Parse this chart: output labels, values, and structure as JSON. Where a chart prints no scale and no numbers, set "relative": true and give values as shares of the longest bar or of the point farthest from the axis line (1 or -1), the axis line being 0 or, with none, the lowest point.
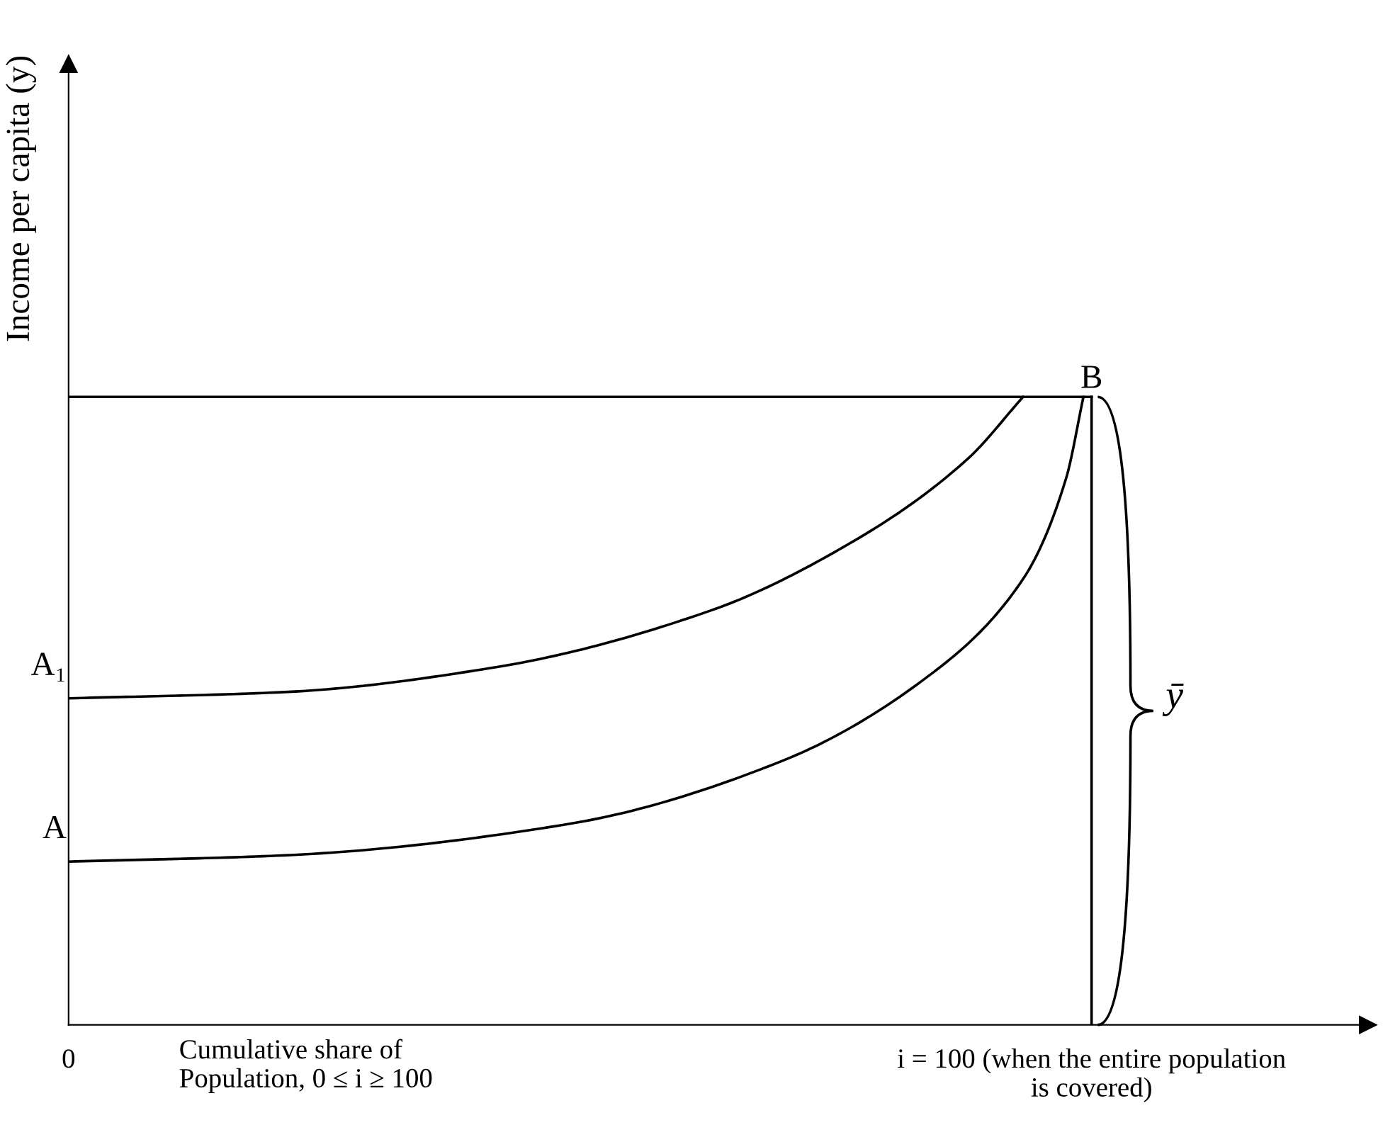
{
  "chart_data": {
    "type": "line",
    "relative": true,
    "ylabel": "Income per capita (y)",
    "xlabel": "Cumulative share of\nPopulation, 0 ≤ i ≥ 100",
    "xlim": [
      0,
      127
    ],
    "xticks": [
      0,
      {
        "value": 100,
        "label": "i = 100 (when the entire population\nis covered)"
      }
    ],
    "tick_labels": "x",
    "series": [
      {
        "color": "#000000",
        "x": [
          0,
          21.1,
          41.9,
          62.8,
          76.7,
          87.8,
          93.3
        ],
        "values": [
          0.52,
          0.53,
          0.57,
          0.66,
          0.77,
          0.9,
          1.0
        ]
      },
      {
        "color": "#000000",
        "x": [
          0,
          21.1,
          48.9,
          69.7,
          83.6,
          93.3,
          97.5,
          99.2
        ],
        "values": [
          0.26,
          0.27,
          0.32,
          0.42,
          0.55,
          0.71,
          0.87,
          1.0
        ]
      },
      {
        "color": "#000000",
        "x": [
          0,
          100
        ],
        "values": [
          1.0,
          1.0
        ]
      },
      {
        "color": "#000000",
        "x": [
          100,
          100
        ],
        "values": [
          0,
          1.0
        ]
      }
    ],
    "annotations": [
      "A₁",
      "A",
      {
        "text": "B",
        "x": 100,
        "y": 1.0
      },
      {
        "text": "ȳ",
        "x": 100,
        "y": 0.5
      }
    ],
    "grid": false,
    "legend": false,
    "marker": "none",
    "line_style": "solid"
  }
}
